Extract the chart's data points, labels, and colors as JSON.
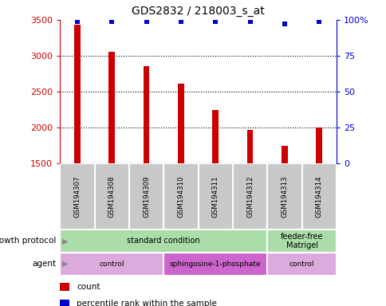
{
  "title": "GDS2832 / 218003_s_at",
  "samples": [
    "GSM194307",
    "GSM194308",
    "GSM194309",
    "GSM194310",
    "GSM194311",
    "GSM194312",
    "GSM194313",
    "GSM194314"
  ],
  "counts": [
    3430,
    3060,
    2860,
    2610,
    2250,
    1970,
    1750,
    2000
  ],
  "percentile_ranks": [
    99,
    99,
    99,
    99,
    99,
    99,
    97,
    99
  ],
  "ylim_left": [
    1500,
    3500
  ],
  "ylim_right": [
    0,
    100
  ],
  "yticks_left": [
    1500,
    2000,
    2500,
    3000,
    3500
  ],
  "yticks_right": [
    0,
    25,
    50,
    75,
    100
  ],
  "bar_color": "#cc0000",
  "dot_color": "#0000cc",
  "left_tick_color": "#cc0000",
  "right_tick_color": "#0000cc",
  "sample_bg_color": "#c8c8c8",
  "growth_protocol_color": "#aaddaa",
  "agent_light_color": "#ddaadd",
  "agent_dark_color": "#cc66cc",
  "annotation_rows": [
    {
      "label": "growth protocol",
      "segments": [
        {
          "text": "standard condition",
          "span": [
            0,
            6
          ],
          "color": "#aaddaa"
        },
        {
          "text": "feeder-free\nMatrigel",
          "span": [
            6,
            8
          ],
          "color": "#aaddaa"
        }
      ]
    },
    {
      "label": "agent",
      "segments": [
        {
          "text": "control",
          "span": [
            0,
            3
          ],
          "color": "#ddaadd"
        },
        {
          "text": "sphingosine-1-phosphate",
          "span": [
            3,
            6
          ],
          "color": "#cc66cc"
        },
        {
          "text": "control",
          "span": [
            6,
            8
          ],
          "color": "#ddaadd"
        }
      ]
    }
  ],
  "legend_items": [
    {
      "color": "#cc0000",
      "label": "count"
    },
    {
      "color": "#0000cc",
      "label": "percentile rank within the sample"
    }
  ]
}
